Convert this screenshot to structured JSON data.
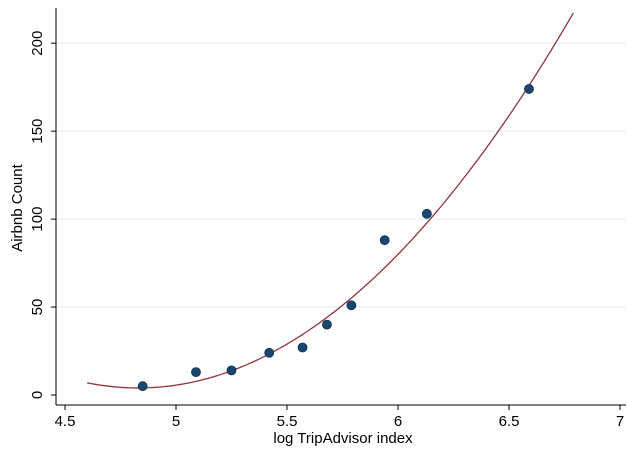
{
  "chart_data": {
    "type": "scatter",
    "xlabel": "log TripAdvisor index",
    "ylabel": "Airbnb Count",
    "xlim": [
      4.5,
      7
    ],
    "ylim": [
      0,
      220
    ],
    "x_ticks": [
      4.5,
      5,
      5.5,
      6,
      6.5,
      7
    ],
    "x_tick_labels": [
      "4.5",
      "5",
      "5.5",
      "6",
      "6.5",
      "7"
    ],
    "y_ticks": [
      0,
      50,
      100,
      150,
      200
    ],
    "y_tick_labels": [
      "0",
      "50",
      "100",
      "150",
      "200"
    ],
    "grid": "horizontal",
    "points": [
      {
        "x": 4.85,
        "y": 5
      },
      {
        "x": 5.09,
        "y": 13
      },
      {
        "x": 5.25,
        "y": 14
      },
      {
        "x": 5.42,
        "y": 24
      },
      {
        "x": 5.57,
        "y": 27
      },
      {
        "x": 5.68,
        "y": 40
      },
      {
        "x": 5.79,
        "y": 51
      },
      {
        "x": 5.94,
        "y": 88
      },
      {
        "x": 6.13,
        "y": 103
      },
      {
        "x": 6.59,
        "y": 174
      }
    ],
    "fit": {
      "type": "quadratic",
      "y_min": 4,
      "x_at_min": 4.83,
      "curvature": 55.5,
      "x_range": [
        4.6,
        6.79
      ]
    },
    "colors": {
      "points": "#1a476f",
      "fit_line": "#90353b",
      "grid": "#e4eaee",
      "axis": "#000000"
    }
  }
}
